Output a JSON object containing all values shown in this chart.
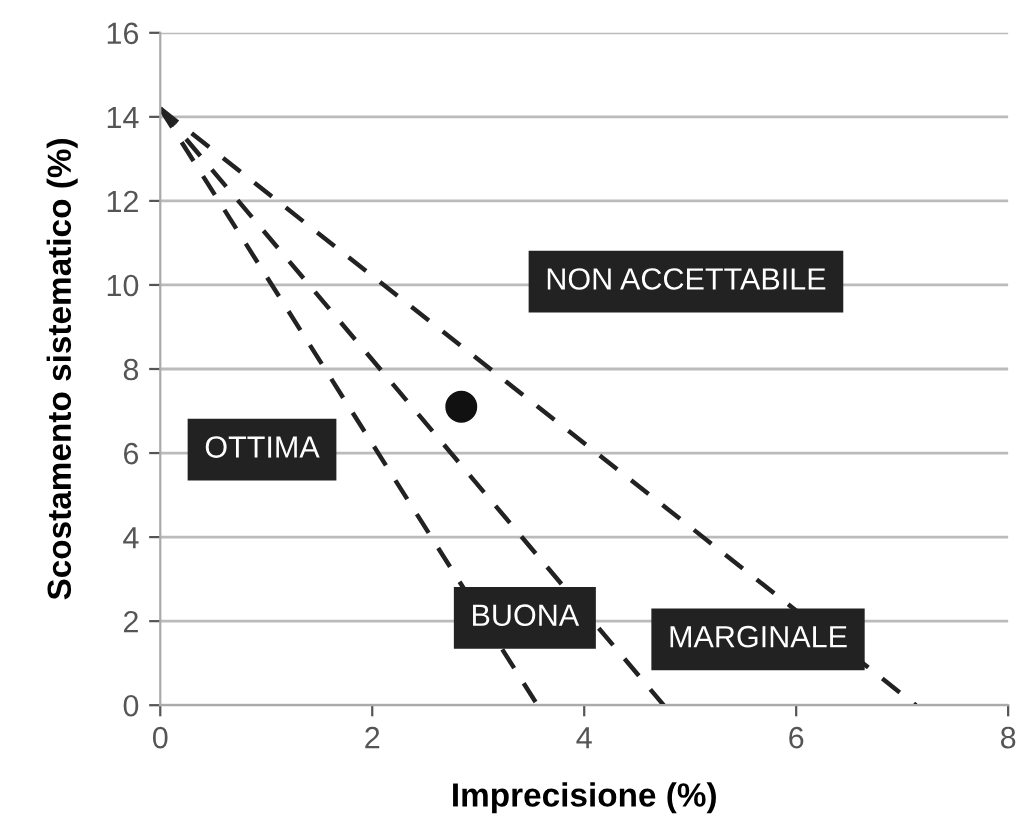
{
  "chart_data": {
    "type": "line",
    "xlabel": "Imprecisione (%)",
    "ylabel": "Scostamento sistematico (%)",
    "xlim": [
      0,
      8
    ],
    "xticks": [
      0,
      2,
      4,
      6,
      8
    ],
    "ylim": [
      0,
      16
    ],
    "yticks": [
      0,
      2,
      4,
      6,
      8,
      10,
      12,
      14,
      16
    ],
    "grid": "y",
    "line_style": "dashed",
    "marker": "none",
    "series": [
      {
        "color": "#222222",
        "x": [
          0,
          3.56
        ],
        "values": [
          14.2,
          0
        ]
      },
      {
        "color": "#222222",
        "x": [
          0,
          4.75
        ],
        "values": [
          14.2,
          0
        ]
      },
      {
        "color": "#222222",
        "x": [
          0,
          7.13
        ],
        "values": [
          14.2,
          0
        ]
      },
      {
        "type": "scatter",
        "color": "#111111",
        "marker": "circle",
        "x": [
          2.84
        ],
        "values": [
          7.1
        ]
      }
    ],
    "annotations": [
      "NON ACCETTABILE",
      "OTTIMA",
      "BUONA",
      "MARGINALE"
    ]
  }
}
